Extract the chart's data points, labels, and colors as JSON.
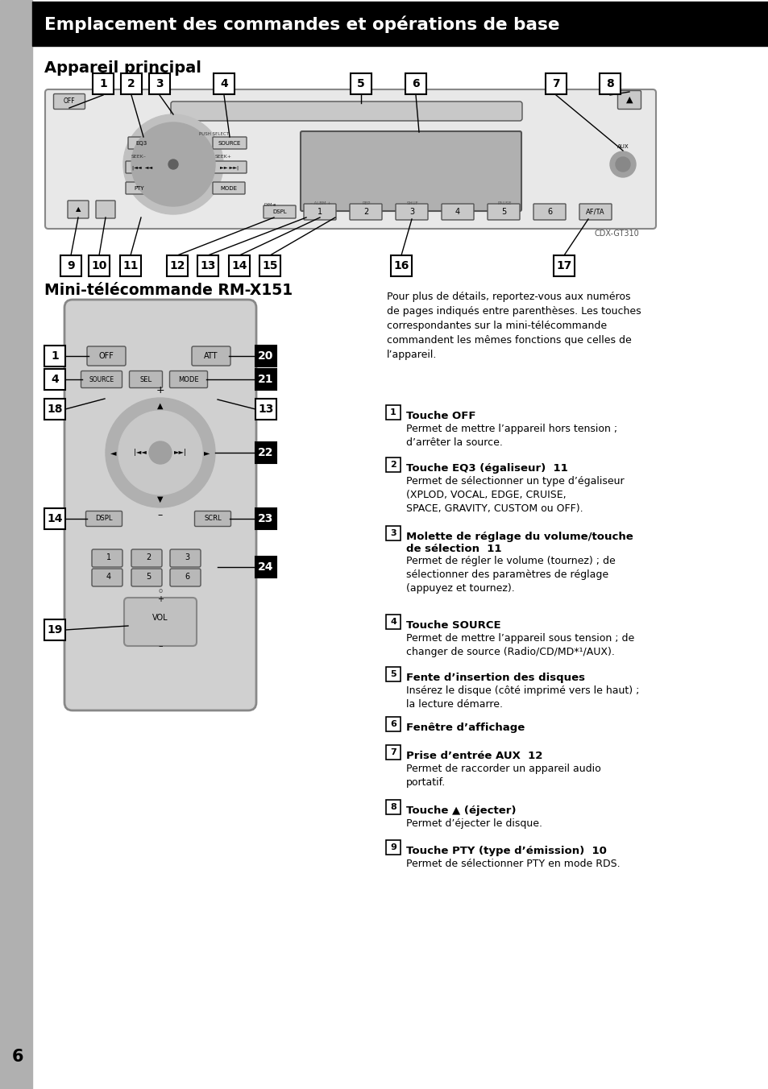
{
  "title_bar_text": "Emplacement des commandes et opérations de base",
  "title_bar_bg": "#000000",
  "title_bar_text_color": "#ffffff",
  "section1_title": "Appareil principal",
  "section2_title": "Mini-télécommande RM-X151",
  "page_bg": "#ffffff",
  "page_number": "6",
  "left_margin_color": "#b0b0b0",
  "right_intro": "Pour plus de détails, reportez-vous aux numéros\nde pages indiqués entre parenthèses. Les touches\ncorrespondantes sur la mini-télécommande\ncommandent les mêmes fonctions que celles de\nl’appareil.",
  "descriptions": [
    {
      "num": "1",
      "bold": "Touche OFF",
      "suffix": "",
      "text": "Permet de mettre l’appareil hors tension ;\nd’arrêter la source."
    },
    {
      "num": "2",
      "bold": "Touche EQ3 (égaliseur)",
      "suffix": "  11",
      "text": "Permet de sélectionner un type d’égaliseur\n(XPLOD, VOCAL, EDGE, CRUISE,\nSPACE, GRAVITY, CUSTOM ou OFF)."
    },
    {
      "num": "3",
      "bold": "Molette de réglage du volume/touche\nde sélection",
      "suffix": "  11",
      "text": "Permet de régler le volume (tournez) ; de\nsélectionner des paramètres de réglage\n(appuyez et tournez)."
    },
    {
      "num": "4",
      "bold": "Touche SOURCE",
      "suffix": "",
      "text": "Permet de mettre l’appareil sous tension ; de\nchanger de source (Radio/CD/MD*¹/AUX)."
    },
    {
      "num": "5",
      "bold": "Fente d’insertion des disques",
      "suffix": "",
      "text": "Insérez le disque (côté imprimé vers le haut) ;\nla lecture démarre."
    },
    {
      "num": "6",
      "bold": "Fenêtre d’affichage",
      "suffix": "",
      "text": ""
    },
    {
      "num": "7",
      "bold": "Prise d’entrée AUX",
      "suffix": "  12",
      "text": "Permet de raccorder un appareil audio\nportatif."
    },
    {
      "num": "8",
      "bold": "Touche ▲ (éjecter)",
      "suffix": "",
      "text": "Permet d’éjecter le disque."
    },
    {
      "num": "9",
      "bold": "Touche PTY (type d’émission)",
      "suffix": "  10",
      "text": "Permet de sélectionner PTY en mode RDS."
    }
  ]
}
